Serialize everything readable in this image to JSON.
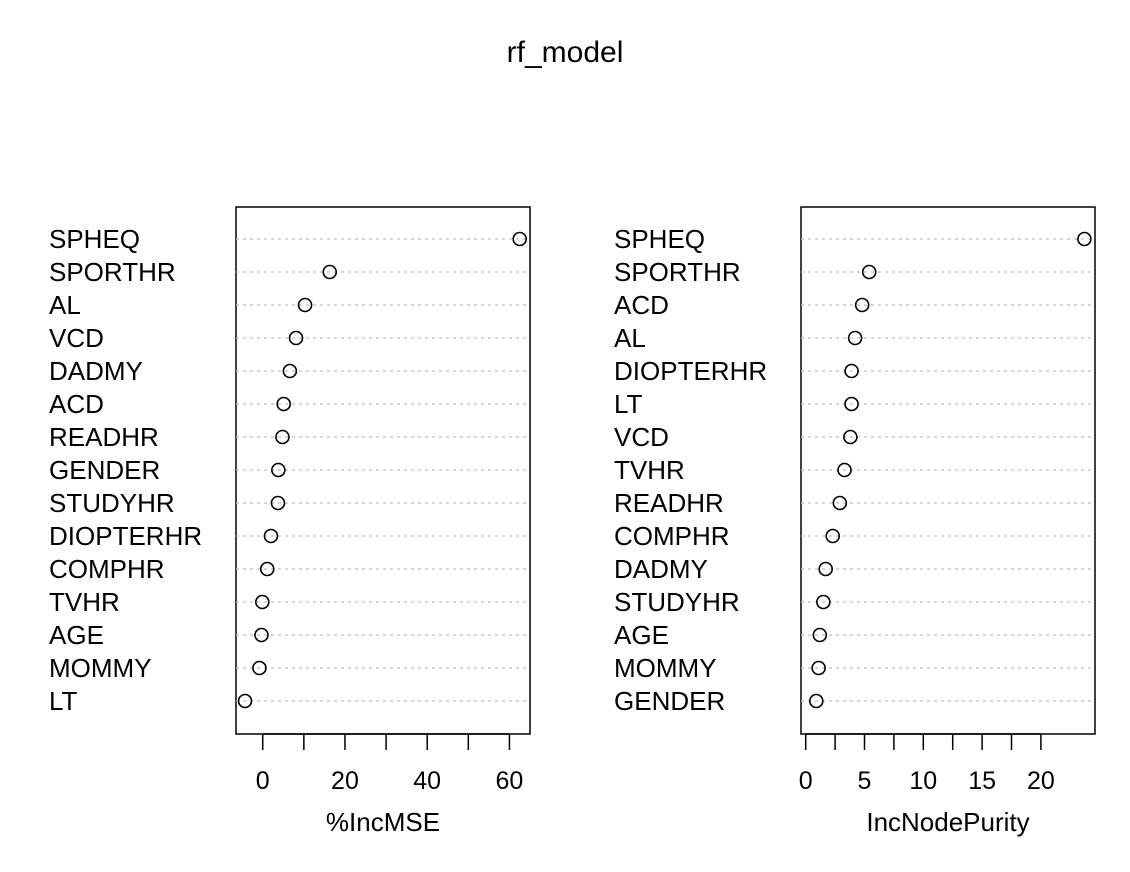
{
  "chart_data": [
    {
      "type": "scatter",
      "title": "rf_model",
      "xlabel": "%IncMSE",
      "ylabel": "",
      "xticks": [
        0,
        20,
        40,
        60
      ],
      "xlim": [
        -6.5,
        65
      ],
      "grid": "horizontal dotted guide lines",
      "categories": [
        "SPHEQ",
        "SPORTHR",
        "AL",
        "VCD",
        "DADMY",
        "ACD",
        "READHR",
        "GENDER",
        "STUDYHR",
        "DIOPTERHR",
        "COMPHR",
        "TVHR",
        "AGE",
        "MOMMY",
        "LT"
      ],
      "values": [
        62.5,
        16.3,
        10.3,
        8.1,
        6.6,
        5.1,
        4.8,
        3.8,
        3.7,
        2.0,
        1.1,
        -0.1,
        -0.3,
        -0.8,
        -4.3
      ]
    },
    {
      "type": "scatter",
      "xlabel": "IncNodePurity",
      "ylabel": "",
      "xticks": [
        0,
        5,
        10,
        15,
        20
      ],
      "xlim": [
        -0.4,
        24.6
      ],
      "grid": "horizontal dotted guide lines",
      "categories": [
        "SPHEQ",
        "SPORTHR",
        "ACD",
        "AL",
        "DIOPTERHR",
        "LT",
        "VCD",
        "TVHR",
        "READHR",
        "COMPHR",
        "DADMY",
        "STUDYHR",
        "AGE",
        "MOMMY",
        "GENDER"
      ],
      "values": [
        23.7,
        5.4,
        4.8,
        4.2,
        3.9,
        3.9,
        3.8,
        3.3,
        2.9,
        2.3,
        1.7,
        1.5,
        1.2,
        1.1,
        0.9
      ]
    }
  ],
  "colors": {
    "points": "#000000",
    "grid": "#bebebe",
    "frame": "#000000"
  }
}
